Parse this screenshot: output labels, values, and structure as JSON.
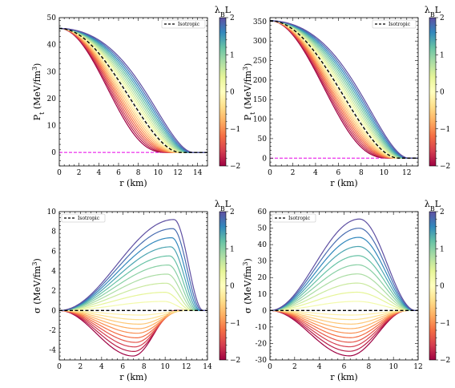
{
  "chart_data": [
    {
      "panel": "top-left",
      "type": "line",
      "xlabel": "r (km)",
      "ylabel": "P_t (MeV/fm^3)",
      "xlim": [
        0,
        15
      ],
      "ylim": [
        -5,
        50
      ],
      "xticks": [
        0,
        2,
        4,
        6,
        8,
        10,
        12,
        14
      ],
      "yticks": [
        0,
        10,
        20,
        30,
        40,
        50
      ],
      "curve_kind": "pressure",
      "peak": 46,
      "radius_iso": 12.3,
      "radius_min": 11.0,
      "radius_max": 13.6,
      "legend": {
        "label": "Isotropic",
        "position": "top-right"
      },
      "zero_line": true,
      "colorbar": {
        "label": "λ_BL",
        "ticks": [
          -2,
          -1,
          0,
          1,
          2
        ],
        "range": [
          -2,
          2
        ]
      },
      "lambda_values": [
        -2,
        -1.8,
        -1.6,
        -1.4,
        -1.2,
        -1,
        -0.8,
        -0.6,
        -0.4,
        -0.2,
        0.2,
        0.4,
        0.6,
        0.8,
        1,
        1.2,
        1.4,
        1.6,
        1.8,
        2
      ]
    },
    {
      "panel": "top-right",
      "type": "line",
      "xlabel": "r (km)",
      "ylabel": "P_t (MeV/fm^3)",
      "xlim": [
        0,
        13
      ],
      "ylim": [
        -20,
        360
      ],
      "xticks": [
        0,
        2,
        4,
        6,
        8,
        10,
        12
      ],
      "yticks": [
        0,
        50,
        100,
        150,
        200,
        250,
        300,
        350
      ],
      "curve_kind": "pressure",
      "peak": 352,
      "radius_iso": 11.3,
      "radius_min": 10.6,
      "radius_max": 12.2,
      "legend": {
        "label": "Isotropic",
        "position": "top-right"
      },
      "zero_line": true,
      "colorbar": {
        "label": "λ_BL",
        "ticks": [
          -2,
          -1,
          0,
          1,
          2
        ],
        "range": [
          -2,
          2
        ]
      },
      "lambda_values": [
        -2,
        -1.8,
        -1.6,
        -1.4,
        -1.2,
        -1,
        -0.8,
        -0.6,
        -0.4,
        -0.2,
        0.2,
        0.4,
        0.6,
        0.8,
        1,
        1.2,
        1.4,
        1.6,
        1.8,
        2
      ]
    },
    {
      "panel": "bottom-left",
      "type": "line",
      "xlabel": "r (km)",
      "ylabel": "σ (MeV/fm^3)",
      "xlim": [
        0,
        14
      ],
      "ylim": [
        -5,
        10
      ],
      "xticks": [
        0,
        2,
        4,
        6,
        8,
        10,
        12,
        14
      ],
      "yticks": [
        -4,
        -2,
        0,
        2,
        4,
        6,
        8,
        10
      ],
      "curve_kind": "sigma",
      "sigma_pos_max": 9.2,
      "sigma_neg_max": 4.6,
      "peak_r_pos": 9.8,
      "peak_r_neg": 7.8,
      "radius_iso": 12.3,
      "radius_min": 11.0,
      "radius_max": 13.6,
      "legend": {
        "label": "Isotropic",
        "position": "top-left"
      },
      "zero_line": false,
      "colorbar": {
        "label": "λ_BL",
        "ticks": [
          -2,
          -1,
          0,
          1,
          2
        ],
        "range": [
          -2,
          2
        ]
      },
      "lambda_values": [
        -2,
        -1.8,
        -1.6,
        -1.4,
        -1.2,
        -1,
        -0.8,
        -0.6,
        -0.4,
        -0.2,
        0.2,
        0.4,
        0.6,
        0.8,
        1,
        1.2,
        1.4,
        1.6,
        1.8,
        2
      ]
    },
    {
      "panel": "bottom-right",
      "type": "line",
      "xlabel": "r (km)",
      "ylabel": "σ (MeV/fm^3)",
      "xlim": [
        0,
        12
      ],
      "ylim": [
        -30,
        60
      ],
      "xticks": [
        0,
        2,
        4,
        6,
        8,
        10,
        12
      ],
      "yticks": [
        -30,
        -20,
        -10,
        0,
        10,
        20,
        30,
        40,
        50,
        60
      ],
      "curve_kind": "sigma",
      "sigma_pos_max": 55.5,
      "sigma_neg_max": 27.5,
      "peak_r_pos": 7.0,
      "peak_r_neg": 6.6,
      "radius_iso": 11.4,
      "radius_min": 11.1,
      "radius_max": 11.8,
      "legend": {
        "label": "Isotropic",
        "position": "top-left"
      },
      "zero_line": false,
      "colorbar": {
        "label": "λ_BL",
        "ticks": [
          -2,
          -1,
          0,
          1,
          2
        ],
        "range": [
          -2,
          2
        ]
      },
      "lambda_values": [
        -2,
        -1.8,
        -1.6,
        -1.4,
        -1.2,
        -1,
        -0.8,
        -0.6,
        -0.4,
        -0.2,
        0.2,
        0.4,
        0.6,
        0.8,
        1,
        1.2,
        1.4,
        1.6,
        1.8,
        2
      ]
    }
  ],
  "colormap_stops": [
    "#9e0142",
    "#d53e4f",
    "#f46d43",
    "#fdae61",
    "#fee08b",
    "#ffffbf",
    "#e6f598",
    "#abdda4",
    "#66c2a5",
    "#3288bd",
    "#5e4fa2"
  ],
  "isotropic_color": "#000000",
  "zero_line_color": "#e600e6"
}
